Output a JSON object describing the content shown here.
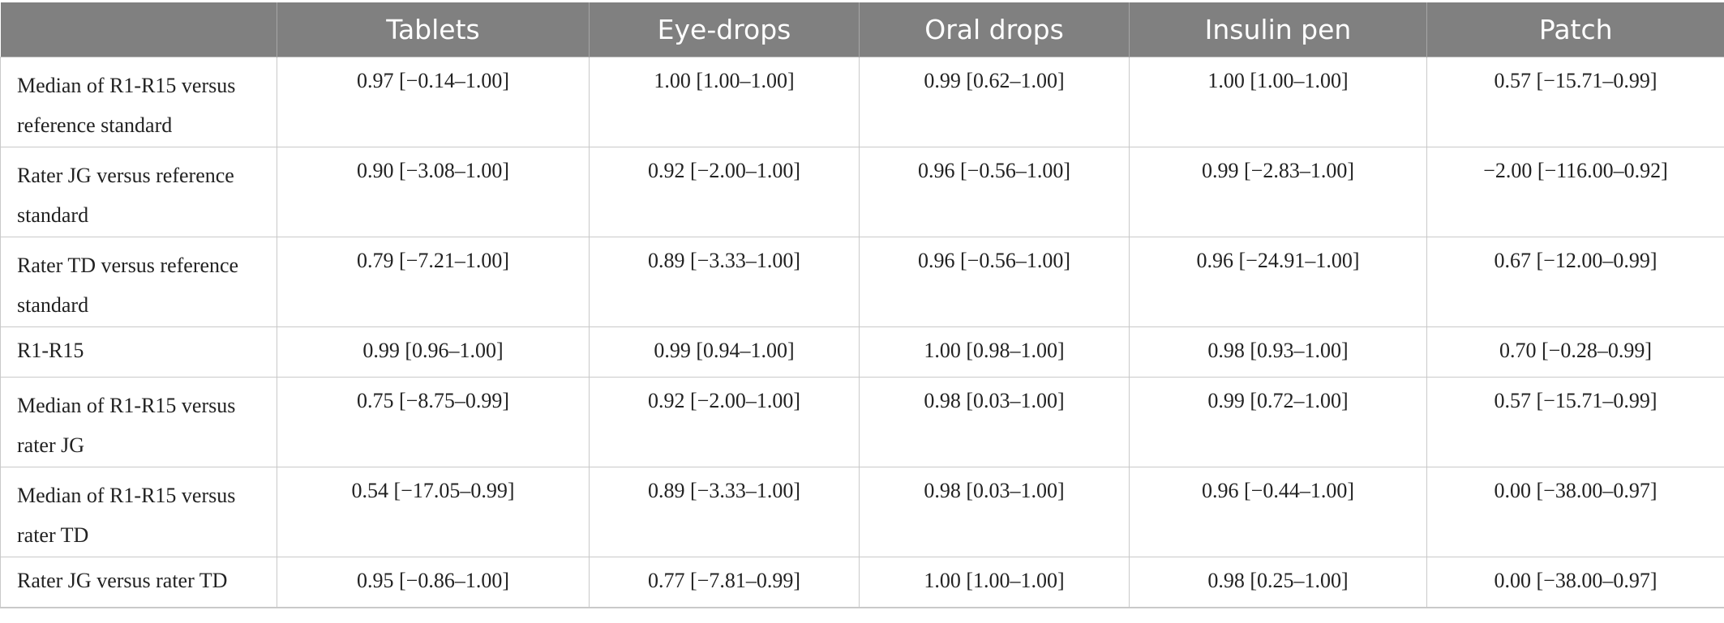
{
  "table": {
    "headers": [
      "",
      "Tablets",
      "Eye-drops",
      "Oral drops",
      "Insulin pen",
      "Patch"
    ],
    "rows": [
      {
        "label": "Median of R1-R15 versus reference standard",
        "values": [
          "0.97 [−0.14–1.00]",
          "1.00 [1.00–1.00]",
          "0.99 [0.62–1.00]",
          "1.00 [1.00–1.00]",
          "0.57 [−15.71–0.99]"
        ]
      },
      {
        "label": "Rater JG versus reference standard",
        "values": [
          "0.90 [−3.08–1.00]",
          "0.92 [−2.00–1.00]",
          "0.96 [−0.56–1.00]",
          "0.99 [−2.83–1.00]",
          "−2.00 [−116.00–0.92]"
        ]
      },
      {
        "label": "Rater TD versus reference standard",
        "values": [
          "0.79 [−7.21–1.00]",
          "0.89 [−3.33–1.00]",
          "0.96 [−0.56–1.00]",
          "0.96 [−24.91–1.00]",
          "0.67 [−12.00–0.99]"
        ]
      },
      {
        "label": "R1-R15",
        "values": [
          "0.99 [0.96–1.00]",
          "0.99 [0.94–1.00]",
          "1.00 [0.98–1.00]",
          "0.98 [0.93–1.00]",
          "0.70 [−0.28–0.99]"
        ]
      },
      {
        "label": "Median of R1-R15 versus rater JG",
        "values": [
          "0.75 [−8.75–0.99]",
          "0.92 [−2.00–1.00]",
          "0.98 [0.03–1.00]",
          "0.99 [0.72–1.00]",
          "0.57 [−15.71–0.99]"
        ]
      },
      {
        "label": "Median of R1-R15 versus rater TD",
        "values": [
          "0.54 [−17.05–0.99]",
          "0.89 [−3.33–1.00]",
          "0.98 [0.03–1.00]",
          "0.96 [−0.44–1.00]",
          "0.00 [−38.00–0.97]"
        ]
      },
      {
        "label": "Rater JG versus rater TD",
        "values": [
          "0.95 [−0.86–1.00]",
          "0.77 [−7.81–0.99]",
          "1.00 [1.00–1.00]",
          "0.98 [0.25–1.00]",
          "0.00 [−38.00–0.97]"
        ]
      }
    ]
  }
}
